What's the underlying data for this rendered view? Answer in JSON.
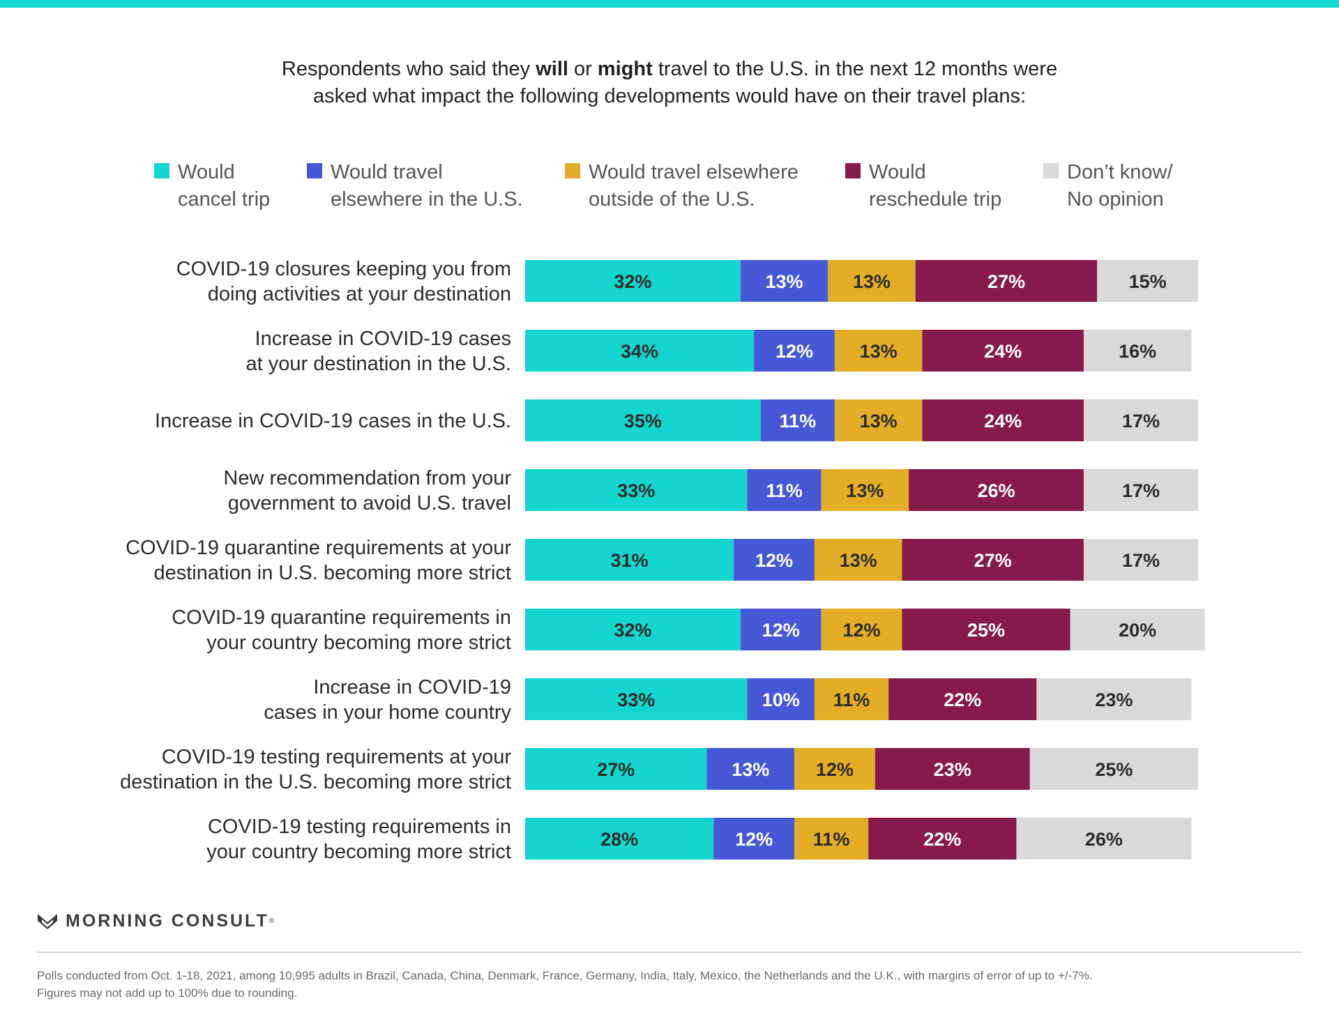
{
  "headline": {
    "line1_pre": "Respondents who said they ",
    "line1_bold1": "will",
    "line1_mid": " or ",
    "line1_bold2": "might",
    "line1_post": " travel to the U.S. in the next 12 months were",
    "line2": "asked what impact the following developments would have on their travel plans:"
  },
  "colors": {
    "accent_bar": "#14d6cf",
    "cancel": "#14d6cf",
    "elsewhere_us": "#4658d6",
    "elsewhere_outside": "#e3ad26",
    "reschedule": "#861a4d",
    "dont_know": "#d9d9d9"
  },
  "legend": [
    {
      "line1": "Would",
      "line2": "cancel trip",
      "color": "#14d6cf"
    },
    {
      "line1": "Would travel",
      "line2": "elsewhere in the U.S.",
      "color": "#4658d6"
    },
    {
      "line1": "Would travel elsewhere",
      "line2": "outside of the U.S.",
      "color": "#e3ad26"
    },
    {
      "line1": "Would",
      "line2": "reschedule trip",
      "color": "#861a4d"
    },
    {
      "line1": "Don’t know/",
      "line2": "No opinion",
      "color": "#d9d9d9"
    }
  ],
  "chart_data": {
    "type": "bar",
    "orientation": "horizontal",
    "stacked": true,
    "unit": "%",
    "categories": [
      [
        "COVID-19 closures keeping you from",
        "doing activities at your destination"
      ],
      [
        "Increase in COVID-19 cases",
        "at your destination in the U.S."
      ],
      [
        "Increase in COVID-19 cases in the U.S."
      ],
      [
        "New recommendation from your",
        "government to avoid U.S. travel"
      ],
      [
        "COVID-19 quarantine requirements at your",
        "destination in U.S. becoming more strict"
      ],
      [
        "COVID-19 quarantine requirements in",
        "your country becoming more strict"
      ],
      [
        "Increase in COVID-19",
        "cases in your home country"
      ],
      [
        "COVID-19 testing requirements at your",
        "destination in the U.S. becoming more strict"
      ],
      [
        "COVID-19 testing requirements in",
        "your country becoming more strict"
      ]
    ],
    "series": [
      {
        "name": "Would cancel trip",
        "color": "#14d6cf",
        "label_color": "#2b2b2b",
        "values": [
          32,
          34,
          35,
          33,
          31,
          32,
          33,
          27,
          28
        ]
      },
      {
        "name": "Would travel elsewhere in the U.S.",
        "color": "#4658d6",
        "label_color": "#ffffff",
        "values": [
          13,
          12,
          11,
          11,
          12,
          12,
          10,
          13,
          12
        ]
      },
      {
        "name": "Would travel elsewhere outside of the U.S.",
        "color": "#e3ad26",
        "label_color": "#2b2b2b",
        "values": [
          13,
          13,
          13,
          13,
          13,
          12,
          11,
          12,
          11
        ]
      },
      {
        "name": "Would reschedule trip",
        "color": "#861a4d",
        "label_color": "#ffffff",
        "values": [
          27,
          24,
          24,
          26,
          27,
          25,
          22,
          23,
          22
        ]
      },
      {
        "name": "Don’t know/ No opinion",
        "color": "#d9d9d9",
        "label_color": "#2b2b2b",
        "values": [
          15,
          16,
          17,
          17,
          17,
          20,
          23,
          25,
          26
        ]
      }
    ],
    "xlim": [
      0,
      100
    ],
    "grid": false,
    "legend_position": "top"
  },
  "brand": {
    "name": "MORNING CONSULT",
    "reg": "®"
  },
  "footnote": {
    "line1": "Polls conducted from Oct. 1-18, 2021, among 10,995 adults in Brazil, Canada, China, Denmark, France, Germany, India, Italy, Mexico, the Netherlands and the U.K., with margins of error of up to +/-7%.",
    "line2": "Figures may not add up to 100% due to rounding."
  }
}
